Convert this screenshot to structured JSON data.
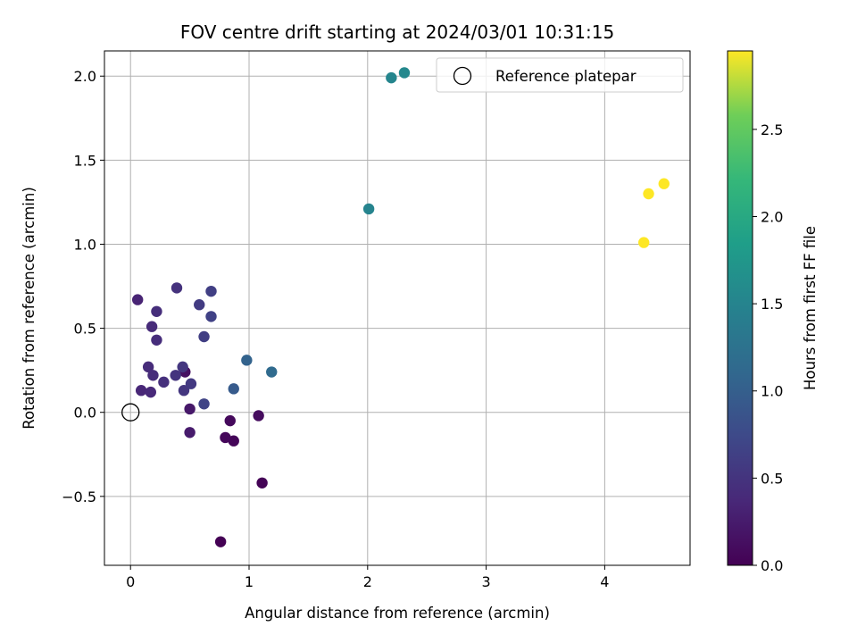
{
  "chart_data": {
    "type": "scatter",
    "title": "FOV centre drift starting at 2024/03/01 10:31:15",
    "xlabel": "Angular distance from reference (arcmin)",
    "ylabel": "Rotation from reference (arcmin)",
    "xlim": [
      -0.22,
      4.72
    ],
    "ylim": [
      -0.91,
      2.15
    ],
    "xticks": [
      0,
      1,
      2,
      3,
      4
    ],
    "xtick_labels": [
      "0",
      "1",
      "2",
      "3",
      "4"
    ],
    "yticks": [
      -0.5,
      0.0,
      0.5,
      1.0,
      1.5,
      2.0
    ],
    "ytick_labels": [
      "−0.5",
      "0.0",
      "0.5",
      "1.0",
      "1.5",
      "2.0"
    ],
    "grid": true,
    "legend": {
      "placement": "top-right",
      "entries": [
        "Reference platepar"
      ]
    },
    "reference_point": {
      "x": 0,
      "y": 0
    },
    "colorbar": {
      "label": "Hours from first FF file",
      "colormap": "viridis",
      "range": [
        0.0,
        2.95
      ],
      "ticks": [
        0.0,
        0.5,
        1.0,
        1.5,
        2.0,
        2.5
      ],
      "tick_labels": [
        "0.0",
        "0.5",
        "1.0",
        "1.5",
        "2.0",
        "2.5"
      ]
    },
    "points": [
      {
        "x": 0.76,
        "y": -0.77,
        "t": 0.0
      },
      {
        "x": 1.11,
        "y": -0.42,
        "t": 0.02
      },
      {
        "x": 0.87,
        "y": -0.17,
        "t": 0.04
      },
      {
        "x": 0.8,
        "y": -0.15,
        "t": 0.06
      },
      {
        "x": 0.84,
        "y": -0.05,
        "t": 0.08
      },
      {
        "x": 1.08,
        "y": -0.02,
        "t": 0.1
      },
      {
        "x": 0.46,
        "y": 0.24,
        "t": 0.14
      },
      {
        "x": 0.5,
        "y": 0.02,
        "t": 0.22
      },
      {
        "x": 0.5,
        "y": -0.12,
        "t": 0.25
      },
      {
        "x": 0.06,
        "y": 0.67,
        "t": 0.33
      },
      {
        "x": 0.09,
        "y": 0.13,
        "t": 0.36
      },
      {
        "x": 0.17,
        "y": 0.12,
        "t": 0.38
      },
      {
        "x": 0.18,
        "y": 0.51,
        "t": 0.4
      },
      {
        "x": 0.15,
        "y": 0.27,
        "t": 0.41
      },
      {
        "x": 0.19,
        "y": 0.22,
        "t": 0.42
      },
      {
        "x": 0.22,
        "y": 0.43,
        "t": 0.43
      },
      {
        "x": 0.22,
        "y": 0.6,
        "t": 0.44
      },
      {
        "x": 0.28,
        "y": 0.18,
        "t": 0.46
      },
      {
        "x": 0.39,
        "y": 0.74,
        "t": 0.48
      },
      {
        "x": 0.38,
        "y": 0.22,
        "t": 0.5
      },
      {
        "x": 0.44,
        "y": 0.27,
        "t": 0.52
      },
      {
        "x": 0.45,
        "y": 0.13,
        "t": 0.53
      },
      {
        "x": 0.51,
        "y": 0.17,
        "t": 0.56
      },
      {
        "x": 0.58,
        "y": 0.64,
        "t": 0.58
      },
      {
        "x": 0.62,
        "y": 0.45,
        "t": 0.61
      },
      {
        "x": 0.68,
        "y": 0.72,
        "t": 0.63
      },
      {
        "x": 0.68,
        "y": 0.57,
        "t": 0.65
      },
      {
        "x": 0.62,
        "y": 0.05,
        "t": 0.68
      },
      {
        "x": 0.87,
        "y": 0.14,
        "t": 0.95
      },
      {
        "x": 0.98,
        "y": 0.31,
        "t": 1.05
      },
      {
        "x": 1.19,
        "y": 0.24,
        "t": 1.15
      },
      {
        "x": 2.01,
        "y": 1.21,
        "t": 1.5
      },
      {
        "x": 2.2,
        "y": 1.99,
        "t": 1.52
      },
      {
        "x": 2.31,
        "y": 2.02,
        "t": 1.55
      },
      {
        "x": 4.33,
        "y": 1.01,
        "t": 2.95
      },
      {
        "x": 4.37,
        "y": 1.3,
        "t": 2.95
      },
      {
        "x": 4.5,
        "y": 1.36,
        "t": 2.95
      }
    ]
  }
}
